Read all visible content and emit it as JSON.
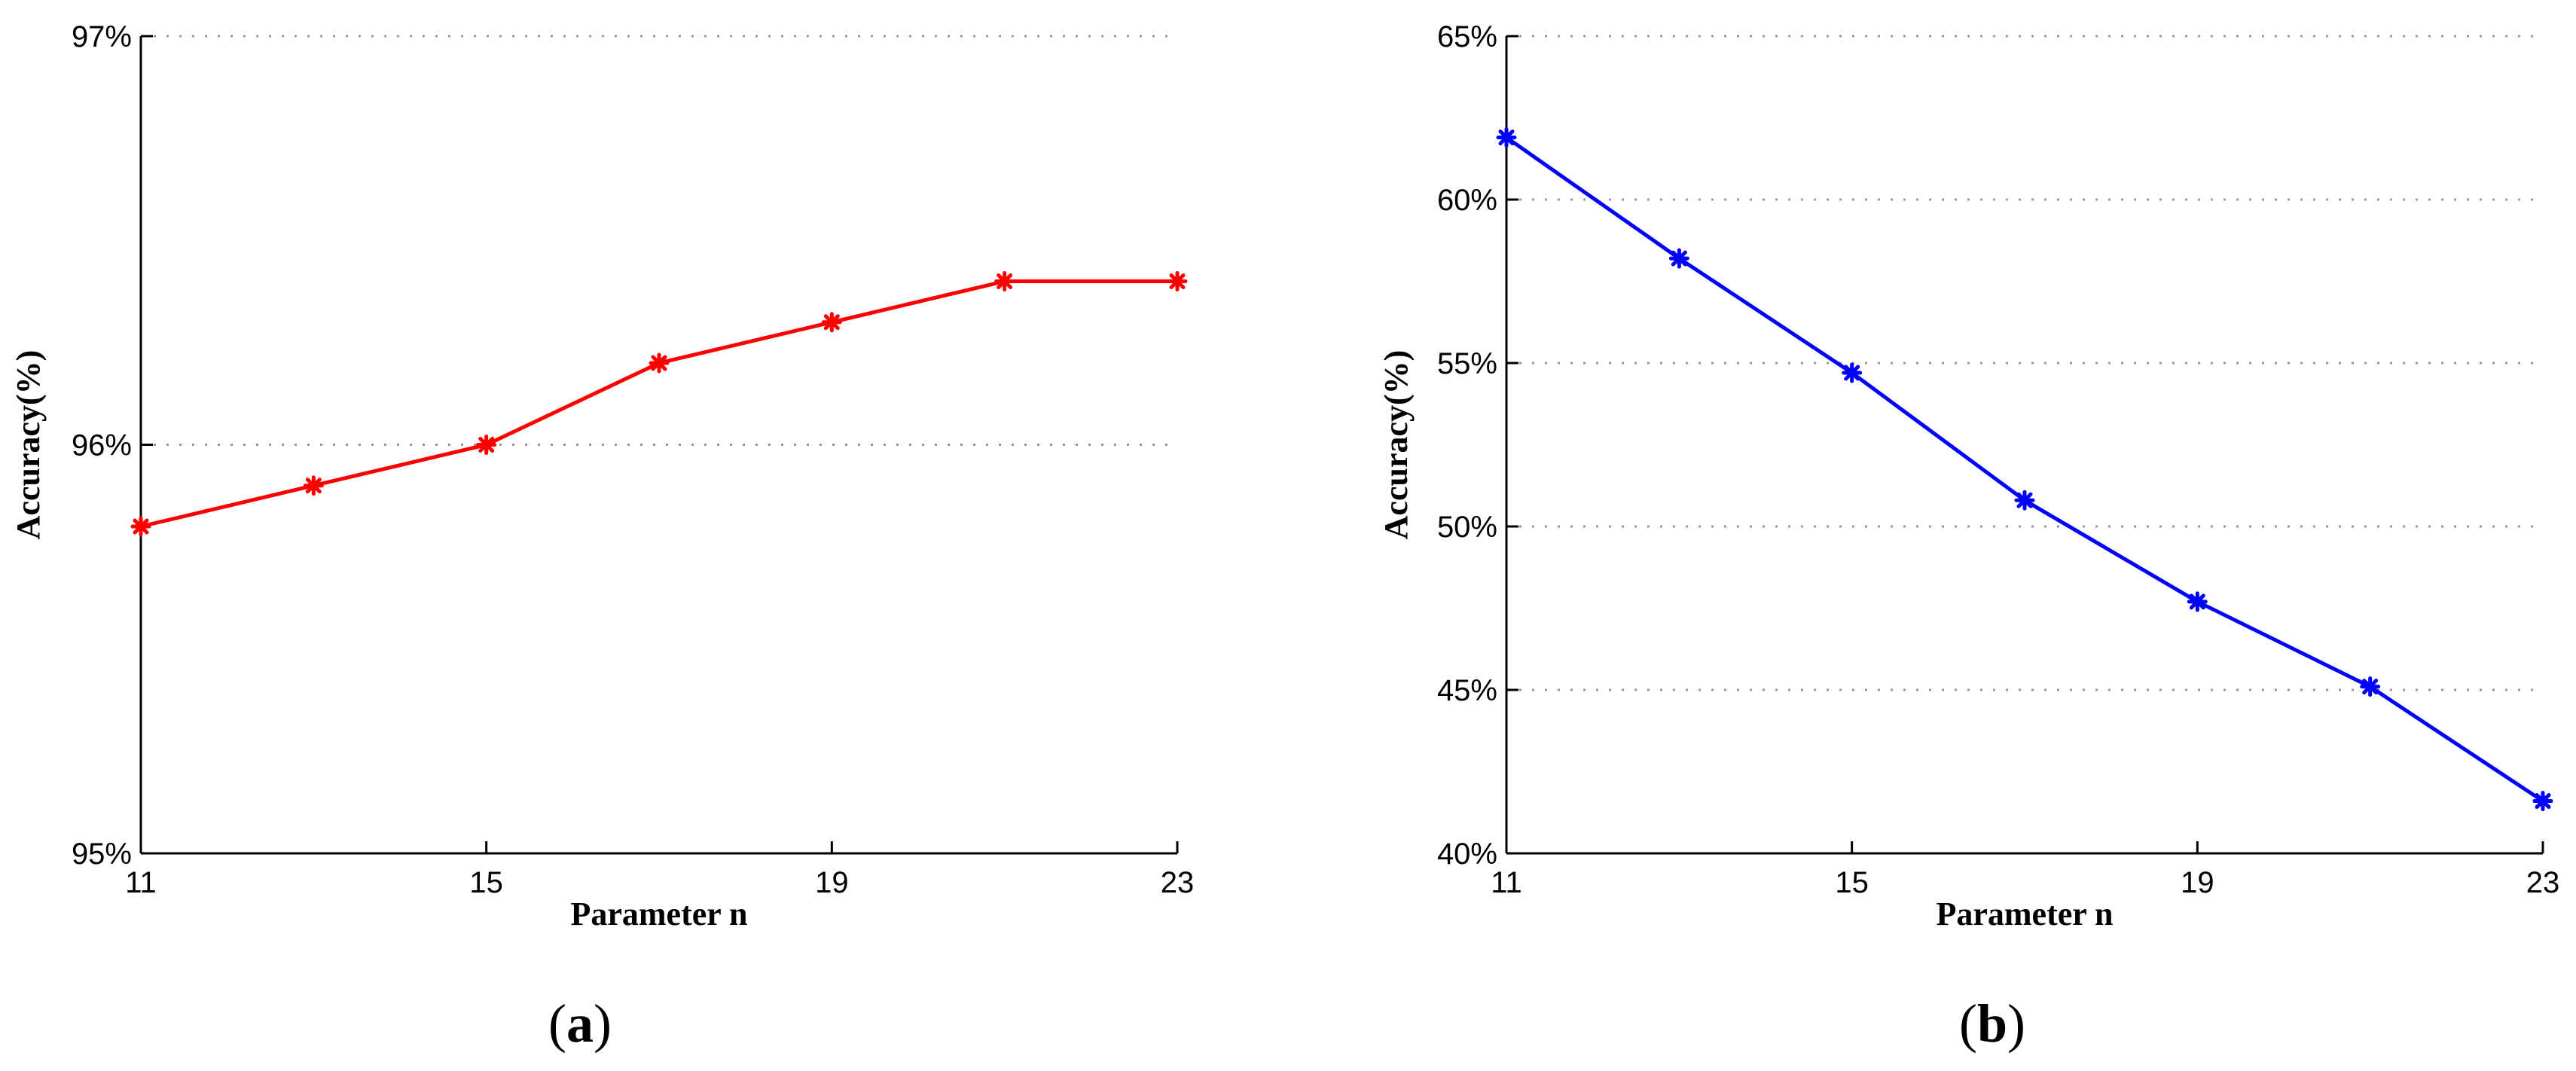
{
  "chart_data": [
    {
      "type": "line",
      "panel_label": "a",
      "xlabel": "Parameter n",
      "ylabel": "Accuracy(%)",
      "x": [
        11,
        13,
        15,
        17,
        19,
        21,
        23
      ],
      "x_ticks": [
        "11",
        "15",
        "19",
        "23"
      ],
      "x_tick_values": [
        11,
        15,
        19,
        23
      ],
      "xlim": [
        11,
        23
      ],
      "y_ticks": [
        "95%",
        "96%",
        "97%"
      ],
      "y_tick_values": [
        95,
        96,
        97
      ],
      "ylim": [
        95,
        97
      ],
      "grid": true,
      "series": [
        {
          "values": [
            95.8,
            95.9,
            96.0,
            96.2,
            96.3,
            96.4,
            96.4
          ],
          "color": "#ff0000",
          "marker": "asterisk"
        }
      ]
    },
    {
      "type": "line",
      "panel_label": "b",
      "xlabel": "Parameter n",
      "ylabel": "Accuracy(%)",
      "x": [
        11,
        13,
        15,
        17,
        19,
        21,
        23
      ],
      "x_ticks": [
        "11",
        "15",
        "19",
        "23"
      ],
      "x_tick_values": [
        11,
        15,
        19,
        23
      ],
      "xlim": [
        11,
        23
      ],
      "y_ticks": [
        "40%",
        "45%",
        "50%",
        "55%",
        "60%",
        "65%"
      ],
      "y_tick_values": [
        40,
        45,
        50,
        55,
        60,
        65
      ],
      "ylim": [
        40,
        65
      ],
      "grid": true,
      "series": [
        {
          "values": [
            61.9,
            58.2,
            54.7,
            50.8,
            47.7,
            45.1,
            41.6
          ],
          "color": "#0000ff",
          "marker": "asterisk"
        }
      ]
    }
  ]
}
